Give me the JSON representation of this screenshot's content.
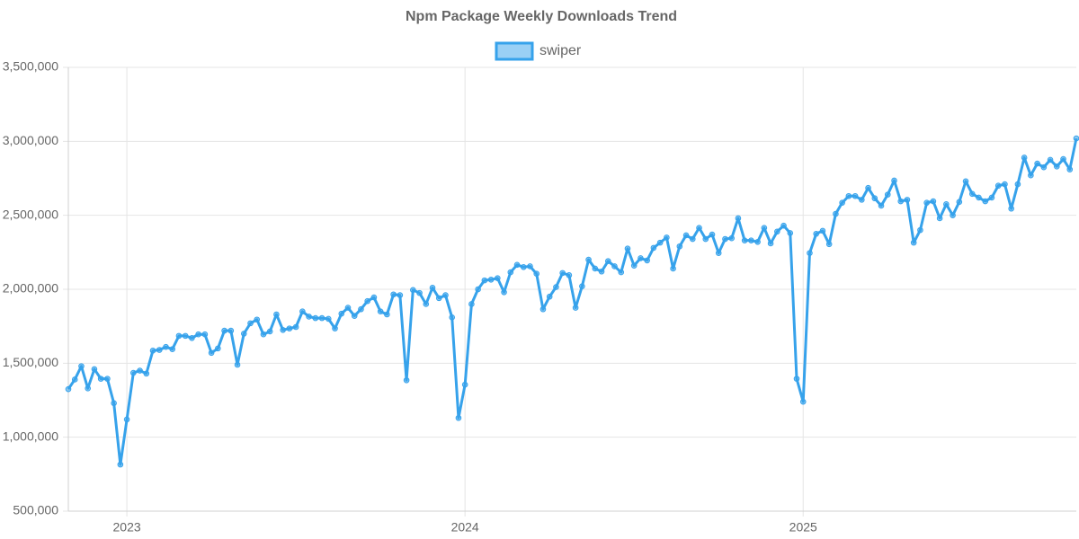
{
  "chart_data": {
    "type": "line",
    "title": "Npm Package Weekly Downloads Trend",
    "categories": [
      null,
      null,
      null,
      null,
      null,
      null,
      null,
      null,
      null,
      "2023",
      null,
      null,
      null,
      null,
      null,
      null,
      null,
      null,
      null,
      null,
      null,
      null,
      null,
      null,
      null,
      null,
      null,
      null,
      null,
      null,
      null,
      null,
      null,
      null,
      null,
      null,
      null,
      null,
      null,
      null,
      null,
      null,
      null,
      null,
      null,
      null,
      null,
      null,
      null,
      null,
      null,
      null,
      null,
      null,
      null,
      null,
      null,
      null,
      null,
      null,
      null,
      "2024",
      null,
      null,
      null,
      null,
      null,
      null,
      null,
      null,
      null,
      null,
      null,
      null,
      null,
      null,
      null,
      null,
      null,
      null,
      null,
      null,
      null,
      null,
      null,
      null,
      null,
      null,
      null,
      null,
      null,
      null,
      null,
      null,
      null,
      null,
      null,
      null,
      null,
      null,
      null,
      null,
      null,
      null,
      null,
      null,
      null,
      null,
      null,
      null,
      null,
      null,
      null,
      "2025",
      null,
      null,
      null,
      null,
      null,
      null,
      null,
      null,
      null,
      null,
      null,
      null,
      null,
      null,
      null,
      null,
      null,
      null,
      null,
      null,
      null,
      null,
      null,
      null,
      null,
      null,
      null,
      null,
      null,
      null,
      null,
      null,
      null,
      null,
      null,
      null,
      null,
      null,
      null,
      null,
      null,
      null
    ],
    "series": [
      {
        "name": "swiper",
        "color": "#36a2eb",
        "values": [
          1325000,
          1390000,
          1480000,
          1330000,
          1460000,
          1395000,
          1395000,
          1230000,
          815000,
          1120000,
          1435000,
          1450000,
          1430000,
          1585000,
          1590000,
          1610000,
          1595000,
          1685000,
          1685000,
          1670000,
          1695000,
          1695000,
          1570000,
          1600000,
          1720000,
          1720000,
          1490000,
          1700000,
          1770000,
          1795000,
          1695000,
          1715000,
          1830000,
          1725000,
          1735000,
          1745000,
          1850000,
          1815000,
          1805000,
          1805000,
          1800000,
          1735000,
          1835000,
          1875000,
          1820000,
          1865000,
          1920000,
          1945000,
          1850000,
          1830000,
          1965000,
          1960000,
          1385000,
          1995000,
          1975000,
          1900000,
          2010000,
          1940000,
          1960000,
          1810000,
          1130000,
          1355000,
          1900000,
          2000000,
          2060000,
          2065000,
          2075000,
          1980000,
          2115000,
          2165000,
          2150000,
          2155000,
          2105000,
          1865000,
          1950000,
          2015000,
          2110000,
          2095000,
          1875000,
          2020000,
          2200000,
          2140000,
          2120000,
          2190000,
          2155000,
          2115000,
          2275000,
          2160000,
          2210000,
          2195000,
          2280000,
          2315000,
          2350000,
          2140000,
          2290000,
          2365000,
          2340000,
          2415000,
          2340000,
          2370000,
          2245000,
          2340000,
          2345000,
          2480000,
          2330000,
          2330000,
          2320000,
          2415000,
          2310000,
          2390000,
          2430000,
          2380000,
          1395000,
          1240000,
          2245000,
          2375000,
          2395000,
          2305000,
          2510000,
          2585000,
          2630000,
          2630000,
          2605000,
          2685000,
          2615000,
          2565000,
          2640000,
          2735000,
          2595000,
          2605000,
          2315000,
          2400000,
          2585000,
          2595000,
          2480000,
          2575000,
          2500000,
          2590000,
          2730000,
          2645000,
          2620000,
          2595000,
          2620000,
          2700000,
          2710000,
          2545000,
          2710000,
          2890000,
          2770000,
          2850000,
          2825000,
          2875000,
          2830000,
          2880000,
          2810000,
          3020000
        ]
      }
    ],
    "ylim": [
      500000,
      3500000
    ],
    "yticks": [
      {
        "value": 500000,
        "label": "500,000"
      },
      {
        "value": 1000000,
        "label": "1,000,000"
      },
      {
        "value": 1500000,
        "label": "1,500,000"
      },
      {
        "value": 2000000,
        "label": "2,000,000"
      },
      {
        "value": 2500000,
        "label": "2,500,000"
      },
      {
        "value": 3000000,
        "label": "3,000,000"
      },
      {
        "value": 3500000,
        "label": "3,500,000"
      }
    ],
    "grid": true,
    "legend": "top"
  }
}
